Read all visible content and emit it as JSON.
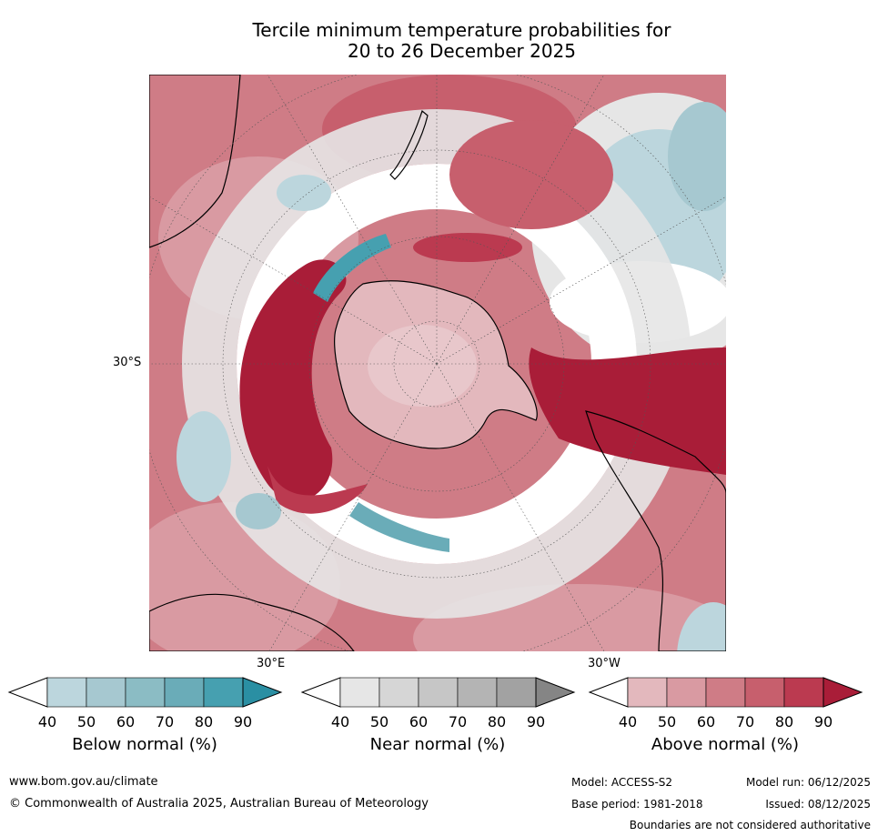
{
  "title": {
    "line1": "Tercile minimum temperature probabilities for",
    "line2": "20 to 26 December 2025"
  },
  "map": {
    "lat_label": "30°S",
    "lon_label_east": "30°E",
    "lon_label_west": "30°W",
    "colors": {
      "below": [
        "#bcd6dd",
        "#a6c8d0",
        "#8bbcc4",
        "#6aacb8",
        "#46a0b0",
        "#2a8fa3"
      ],
      "near": [
        "#e6e6e6",
        "#d6d6d6",
        "#c6c6c6",
        "#b4b4b4",
        "#a2a2a2",
        "#858585"
      ],
      "above": [
        "#e3b8bd",
        "#d99aa2",
        "#cf7c86",
        "#c75f6d",
        "#bb3a50",
        "#a91d38"
      ]
    }
  },
  "colorbars": [
    {
      "label": "Below normal (%)",
      "ticks": [
        "40",
        "50",
        "60",
        "70",
        "80",
        "90"
      ]
    },
    {
      "label": "Near normal (%)",
      "ticks": [
        "40",
        "50",
        "60",
        "70",
        "80",
        "90"
      ]
    },
    {
      "label": "Above normal (%)",
      "ticks": [
        "40",
        "50",
        "60",
        "70",
        "80",
        "90"
      ]
    }
  ],
  "footer": {
    "url": "www.bom.gov.au/climate",
    "copyright": "© Commonwealth of Australia 2025, Australian Bureau of Meteorology",
    "model": "Model: ACCESS-S2",
    "base_period": "Base period: 1981-2018",
    "model_run": "Model run: 06/12/2025",
    "issued": "Issued: 08/12/2025",
    "disclaimer": "Boundaries are not considered authoritative"
  }
}
